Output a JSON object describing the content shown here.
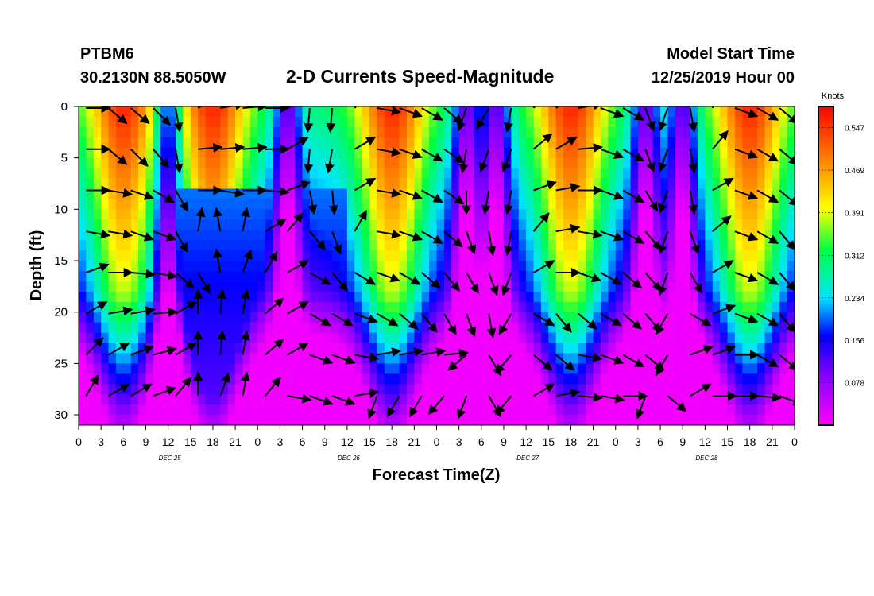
{
  "header": {
    "station_id": "PTBM6",
    "station_location": "30.2130N 88.5050W",
    "title": "2-D Currents Speed-Magnitude",
    "model_start_label": "Model Start Time",
    "model_start_value": "12/25/2019 Hour 00"
  },
  "chart_data": {
    "type": "heatmap",
    "title": "2-D Currents Speed-Magnitude",
    "xlabel": "Forecast Time(Z)",
    "ylabel": "Depth (ft)",
    "x_tick_labels": [
      "0",
      "3",
      "6",
      "9",
      "12",
      "15",
      "18",
      "21",
      "0",
      "3",
      "6",
      "9",
      "12",
      "15",
      "18",
      "21",
      "0",
      "3",
      "6",
      "9",
      "12",
      "15",
      "18",
      "21",
      "0",
      "3",
      "6",
      "9",
      "12",
      "15",
      "18",
      "21",
      "0"
    ],
    "x_range_hours": [
      0,
      96
    ],
    "date_labels": [
      {
        "text": "DEC 25",
        "hour": 12
      },
      {
        "text": "DEC 26",
        "hour": 36
      },
      {
        "text": "DEC 27",
        "hour": 60
      },
      {
        "text": "DEC 28",
        "hour": 84
      }
    ],
    "y_ticks": [
      0,
      5,
      10,
      15,
      20,
      25,
      30
    ],
    "y_range": [
      0,
      31
    ],
    "y_inverted": true,
    "colorbar": {
      "label": "Knots",
      "ticks": [
        "0.547",
        "0.469",
        "0.391",
        "0.312",
        "0.234",
        "0.156",
        "0.078"
      ],
      "tick_values": [
        0.547,
        0.469,
        0.391,
        0.312,
        0.234,
        0.156,
        0.078
      ],
      "range": [
        0,
        0.586
      ]
    },
    "depth_levels": [
      0,
      4,
      8,
      12,
      16,
      20,
      24,
      28
    ],
    "surface_peak_hours": [
      6,
      18,
      42,
      66,
      90
    ],
    "surface_trough_hours": [
      12,
      28,
      52,
      56,
      76,
      81
    ],
    "arrow_hours": [
      1,
      4,
      7,
      10,
      13,
      16,
      19,
      22,
      25,
      28,
      31,
      34,
      37,
      40,
      43,
      46,
      49,
      52,
      55,
      58,
      61,
      64,
      67,
      70,
      73,
      76,
      79,
      82,
      85,
      88,
      91,
      94
    ],
    "arrow_directions_deg": [
      [
        90,
        130,
        130,
        135,
        170,
        60,
        80,
        85,
        90,
        60,
        185,
        185,
        40,
        100,
        110,
        120,
        130,
        200,
        210,
        190,
        40,
        50,
        80,
        110,
        120,
        160,
        200,
        170,
        30,
        110,
        120,
        130
      ],
      [
        90,
        130,
        135,
        140,
        170,
        85,
        85,
        85,
        90,
        60,
        185,
        190,
        60,
        100,
        110,
        120,
        125,
        190,
        200,
        200,
        50,
        60,
        85,
        110,
        120,
        160,
        200,
        170,
        40,
        110,
        120,
        130
      ],
      [
        90,
        100,
        110,
        120,
        150,
        90,
        100,
        90,
        95,
        70,
        170,
        175,
        60,
        100,
        110,
        120,
        125,
        180,
        190,
        190,
        70,
        80,
        90,
        110,
        120,
        150,
        200,
        170,
        60,
        110,
        120,
        130
      ],
      [
        100,
        100,
        110,
        110,
        150,
        10,
        350,
        10,
        60,
        40,
        140,
        160,
        30,
        100,
        110,
        120,
        130,
        160,
        170,
        190,
        40,
        80,
        100,
        110,
        120,
        140,
        200,
        160,
        50,
        110,
        120,
        140
      ],
      [
        70,
        90,
        95,
        100,
        130,
        150,
        350,
        20,
        30,
        60,
        120,
        140,
        120,
        110,
        120,
        130,
        140,
        150,
        160,
        200,
        60,
        90,
        110,
        120,
        130,
        140,
        200,
        150,
        60,
        110,
        120,
        140
      ],
      [
        60,
        80,
        80,
        85,
        60,
        0,
        5,
        10,
        50,
        60,
        120,
        120,
        110,
        120,
        130,
        140,
        150,
        160,
        170,
        210,
        120,
        140,
        130,
        120,
        130,
        140,
        210,
        120,
        70,
        110,
        120,
        140
      ],
      [
        45,
        60,
        70,
        75,
        60,
        0,
        5,
        10,
        50,
        60,
        110,
        110,
        100,
        80,
        80,
        80,
        85,
        230,
        150,
        220,
        130,
        130,
        100,
        110,
        120,
        130,
        210,
        70,
        70,
        90,
        120,
        130
      ],
      [
        30,
        60,
        60,
        70,
        40,
        0,
        20,
        10,
        40,
        100,
        110,
        110,
        80,
        200,
        210,
        210,
        220,
        200,
        150,
        220,
        60,
        80,
        95,
        100,
        90,
        200,
        130,
        60,
        90,
        90,
        95,
        110
      ]
    ]
  }
}
